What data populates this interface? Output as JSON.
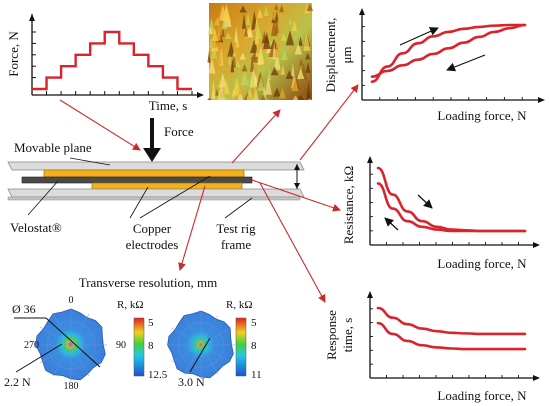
{
  "force_panel": {
    "ylabel": "Force, N",
    "xlabel": "Time, s",
    "chart_data": {
      "type": "line",
      "title": "",
      "xlabel": "Time, s",
      "ylabel": "Force, N",
      "x": [
        0,
        1,
        2,
        3,
        4,
        5,
        6,
        7,
        8,
        9,
        10,
        11
      ],
      "y": [
        0,
        1,
        2,
        3,
        4,
        5,
        4,
        3,
        2,
        1,
        0,
        0
      ],
      "step": true,
      "color": "#d9232d"
    }
  },
  "force_arrow_label": "Force",
  "setup": {
    "movable_plane": "Movable plane",
    "velostat": "Velostat®",
    "copper": [
      "Copper",
      "electrodes"
    ],
    "test_rig": [
      "Test rig",
      "frame"
    ]
  },
  "displacement_panel": {
    "ylabel": [
      "Displacement,",
      "μm"
    ],
    "xlabel": "Loading force, N",
    "chart_data": {
      "type": "line",
      "xlabel": "Loading force, N",
      "ylabel": "Displacement, μm",
      "x": [
        0,
        0.1,
        0.2,
        0.3,
        0.4,
        0.5,
        0.6,
        0.7,
        0.8,
        0.9,
        1.0
      ],
      "series": [
        {
          "values": [
            0.1,
            0.34,
            0.55,
            0.71,
            0.82,
            0.89,
            0.94,
            0.97,
            0.99,
            1.0,
            1.0
          ]
        },
        {
          "values": [
            0.18,
            0.27,
            0.36,
            0.45,
            0.54,
            0.63,
            0.72,
            0.81,
            0.89,
            0.95,
            1.0
          ]
        }
      ]
    }
  },
  "resistance_panel": {
    "ylabel": "Resistance, kΩ",
    "xlabel": "Loading force, N",
    "chart_data": {
      "type": "line",
      "xlabel": "Loading force, N",
      "ylabel": "Resistance, kΩ",
      "x": [
        0,
        0.1,
        0.2,
        0.3,
        0.4,
        0.5,
        0.6,
        0.7,
        0.8,
        0.9,
        1.0
      ],
      "series": [
        {
          "values": [
            1.0,
            0.62,
            0.38,
            0.24,
            0.16,
            0.12,
            0.11,
            0.1,
            0.1,
            0.1,
            0.1
          ]
        },
        {
          "values": [
            0.78,
            0.42,
            0.24,
            0.16,
            0.12,
            0.1,
            0.1,
            0.1,
            0.1,
            0.1,
            0.1
          ]
        }
      ]
    }
  },
  "response_panel": {
    "ylabel": [
      "Response",
      "time, s"
    ],
    "xlabel": "Loading force, N",
    "chart_data": {
      "type": "line",
      "xlabel": "Loading force, N",
      "ylabel": "Response time, s",
      "x": [
        0,
        0.1,
        0.2,
        0.3,
        0.4,
        0.5,
        0.6,
        0.7,
        0.8,
        0.9,
        1.0
      ],
      "series": [
        {
          "values": [
            1.0,
            0.82,
            0.7,
            0.62,
            0.57,
            0.54,
            0.53,
            0.52,
            0.52,
            0.52,
            0.52
          ]
        },
        {
          "values": [
            0.72,
            0.52,
            0.39,
            0.31,
            0.27,
            0.25,
            0.24,
            0.24,
            0.24,
            0.24,
            0.24
          ]
        }
      ]
    }
  },
  "transverse": {
    "title": "Transverse resolution, mm",
    "diameter_label": "Ø 36",
    "angles": [
      "0",
      "90",
      "180",
      "270"
    ],
    "left": {
      "force": "2.2 N",
      "scale_title": "R, kΩ",
      "scale_ticks": [
        "5",
        "8",
        "12.5"
      ]
    },
    "right": {
      "force": "3.0 N",
      "scale_title": "R, kΩ",
      "scale_ticks": [
        "5",
        "8",
        "11"
      ]
    }
  },
  "colors": {
    "curve": "#d9232d",
    "arrow": "#cc2a2a",
    "copper": "#f2b21c",
    "velostat": "#4a4a4a",
    "plane": "#d9d9d9"
  }
}
